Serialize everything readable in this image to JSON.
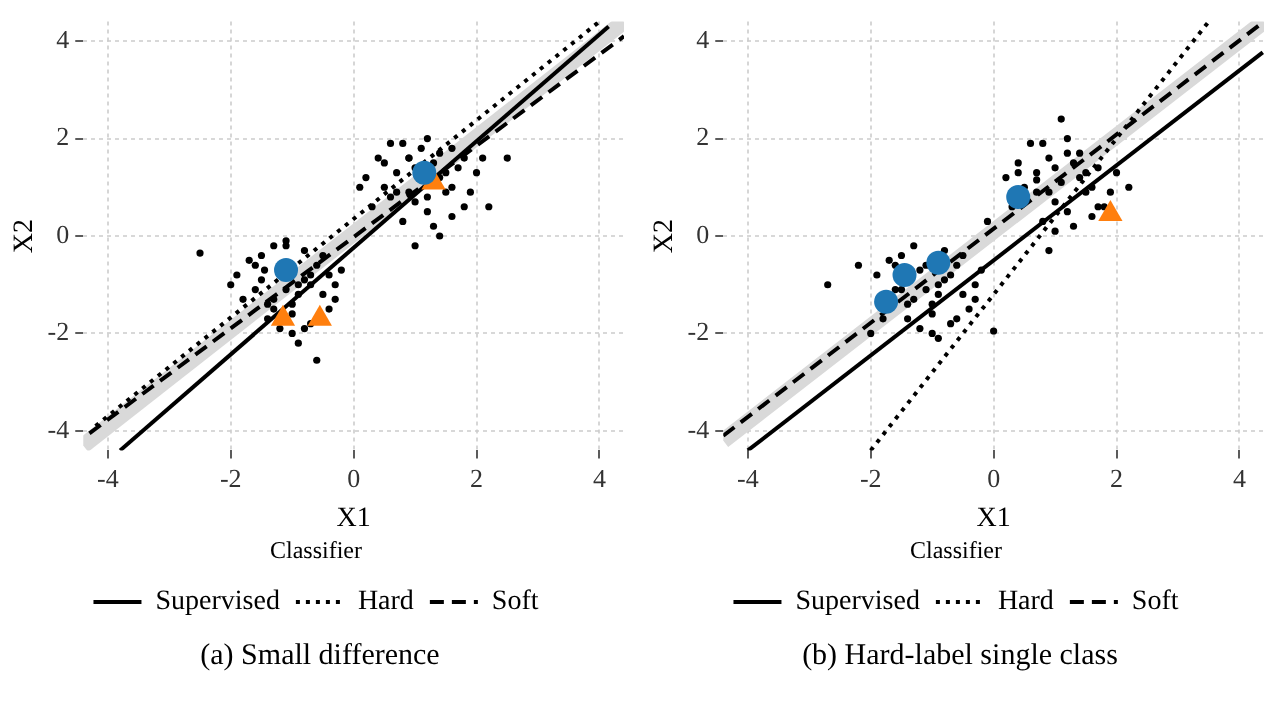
{
  "chart_data": [
    {
      "type": "scatter",
      "xlabel": "X1",
      "ylabel": "X2",
      "xlim": [
        -4.4,
        4.4
      ],
      "ylim": [
        -4.4,
        4.4
      ],
      "xticks": [
        -4,
        -2,
        0,
        2,
        4
      ],
      "yticks": [
        -4,
        -2,
        0,
        2,
        4
      ],
      "grid": true,
      "legend": "bottom",
      "legend_title": "Classifier",
      "annotations": [
        "(a) Small difference"
      ],
      "series": [
        {
          "type": "scatter",
          "marker": "circle",
          "color": "#000000",
          "x": [
            0.2,
            0.4,
            0.6,
            0.8,
            1.0,
            1.2,
            1.4,
            1.6,
            1.8,
            2.0,
            0.5,
            0.7,
            0.9,
            0.9,
            1.3,
            1.5,
            1.7,
            0.3,
            0.8,
            1.2,
            1.6,
            2.1,
            0.6,
            1.0,
            1.4,
            1.9,
            0.9,
            1.3,
            1.1,
            0.7,
            1.5,
            2.5,
            2.2,
            0.1,
            1.8,
            1.0,
            1.4,
            0.5,
            1.2,
            1.6,
            -0.9,
            -1.1,
            -1.3,
            -0.7,
            -0.5,
            -1.5,
            -1.7,
            -0.3,
            -1.0,
            -1.2,
            -0.8,
            -0.6,
            -1.4,
            -1.6,
            -1.9,
            -0.4,
            -1.0,
            -1.3,
            -0.9,
            -0.7,
            -1.1,
            -1.5,
            -0.2,
            -2.5,
            -0.6,
            -1.8,
            -0.8,
            -1.45,
            -1.0,
            -0.5,
            -1.4,
            -0.3,
            -1.6,
            -0.9,
            -1.1,
            -0.7,
            -2.0,
            -1.3,
            -0.4,
            -0.8
          ],
          "values": [
            1.2,
            1.6,
            0.8,
            1.9,
            1.4,
            0.5,
            1.7,
            1.0,
            0.6,
            1.3,
            1.0,
            1.3,
            0.9,
            1.6,
            1.5,
            0.9,
            1.4,
            0.6,
            0.3,
            2.0,
            0.4,
            1.6,
            1.9,
            0.7,
            1.2,
            0.9,
            1.6,
            0.2,
            1.8,
            0.9,
            1.3,
            1.6,
            0.6,
            1.0,
            1.6,
            -0.2,
            0.0,
            1.5,
            0.8,
            1.8,
            -1.0,
            -0.2,
            -1.3,
            -0.8,
            -1.2,
            -0.9,
            -0.5,
            -1.0,
            -1.6,
            -1.9,
            -0.3,
            -0.6,
            -1.4,
            -1.1,
            -0.8,
            -1.5,
            -2.0,
            -0.2,
            -1.2,
            -1.8,
            -1.1,
            -0.4,
            -0.7,
            -0.35,
            -2.55,
            -1.3,
            -0.9,
            -0.7,
            -1.4,
            -0.4,
            -1.7,
            -1.3,
            -0.6,
            -2.2,
            -0.1,
            -1.0,
            -1.0,
            -1.5,
            -0.8,
            -1.9
          ]
        },
        {
          "type": "scatter",
          "marker": "circle",
          "color": "#1f77b4",
          "x": [
            1.15,
            -1.1
          ],
          "values": [
            1.3,
            -0.7
          ]
        },
        {
          "type": "scatter",
          "marker": "triangle",
          "color": "#ff7f0e",
          "x": [
            1.3,
            -1.15,
            -0.55
          ],
          "values": [
            1.1,
            -1.7,
            -1.7
          ]
        },
        {
          "type": "line",
          "line_style": "solid",
          "color": "#d9d9d9",
          "x": [
            -4.4,
            4.4
          ],
          "values": [
            -4.3,
            4.4
          ]
        },
        {
          "type": "line",
          "name": "Supervised",
          "line_style": "solid",
          "color": "#000000",
          "x": [
            -3.8,
            4.15
          ],
          "values": [
            -4.4,
            4.3
          ]
        },
        {
          "type": "line",
          "name": "Hard",
          "line_style": "dotted",
          "color": "#000000",
          "x": [
            -4.2,
            4.0
          ],
          "values": [
            -3.9,
            4.4
          ]
        },
        {
          "type": "line",
          "name": "Soft",
          "line_style": "dashed",
          "color": "#000000",
          "x": [
            -4.3,
            4.4
          ],
          "values": [
            -4.05,
            4.1
          ]
        }
      ]
    },
    {
      "type": "scatter",
      "xlabel": "X1",
      "ylabel": "X2",
      "xlim": [
        -4.4,
        4.4
      ],
      "ylim": [
        -4.4,
        4.4
      ],
      "xticks": [
        -4,
        -2,
        0,
        2,
        4
      ],
      "yticks": [
        -4,
        -2,
        0,
        2,
        4
      ],
      "grid": true,
      "legend": "bottom",
      "legend_title": "Classifier",
      "annotations": [
        "(b) Hard-label single class"
      ],
      "series": [
        {
          "type": "scatter",
          "marker": "circle",
          "color": "#000000",
          "x": [
            0.2,
            0.4,
            0.7,
            0.8,
            1.0,
            1.2,
            1.4,
            1.6,
            1.8,
            2.0,
            0.5,
            0.7,
            0.9,
            1.1,
            1.3,
            1.5,
            1.7,
            0.3,
            0.8,
            1.2,
            1.6,
            2.2,
            0.6,
            1.0,
            1.4,
            1.9,
            0.9,
            1.3,
            1.1,
            0.7,
            1.5,
            -0.1,
            0.9,
            1.7,
            1.0,
            0.4,
            1.2,
            -0.9,
            -1.1,
            -1.3,
            -0.7,
            -0.5,
            -1.5,
            -1.7,
            -0.3,
            -1.0,
            -1.2,
            -0.8,
            -0.6,
            -1.4,
            -1.6,
            -1.9,
            -0.4,
            -1.0,
            -1.3,
            -0.9,
            -0.7,
            -1.1,
            -1.5,
            -0.2,
            -2.7,
            -2.0,
            0.0,
            -1.8,
            -0.8,
            -1.2,
            -1.0,
            -0.5,
            -1.4,
            -0.3,
            -1.6,
            -0.9,
            -0.6,
            -2.2
          ],
          "values": [
            1.2,
            1.5,
            1.15,
            1.9,
            1.4,
            0.5,
            1.7,
            1.0,
            0.6,
            1.3,
            1.0,
            1.3,
            0.9,
            1.1,
            1.5,
            0.9,
            1.4,
            0.6,
            0.3,
            2.0,
            0.4,
            1.0,
            1.9,
            0.7,
            1.2,
            0.9,
            1.6,
            0.2,
            2.4,
            0.9,
            1.3,
            0.3,
            -0.3,
            0.6,
            0.1,
            1.3,
            1.7,
            -1.0,
            -0.6,
            -1.3,
            -0.8,
            -1.2,
            -1.1,
            -0.5,
            -1.0,
            -1.6,
            -1.9,
            -0.3,
            -0.6,
            -1.4,
            -1.1,
            -0.8,
            -1.5,
            -2.0,
            -0.2,
            -1.2,
            -1.8,
            -1.1,
            -0.4,
            -0.7,
            -1.0,
            -2.0,
            -1.95,
            -1.7,
            -0.9,
            -0.7,
            -1.4,
            -0.4,
            -1.7,
            -1.3,
            -0.6,
            -2.1,
            -1.7,
            -0.6
          ]
        },
        {
          "type": "scatter",
          "marker": "circle",
          "color": "#1f77b4",
          "x": [
            0.4,
            -1.45,
            -0.9,
            -1.75
          ],
          "values": [
            0.8,
            -0.8,
            -0.55,
            -1.35
          ]
        },
        {
          "type": "scatter",
          "marker": "triangle",
          "color": "#ff7f0e",
          "x": [
            1.9
          ],
          "values": [
            0.45
          ]
        },
        {
          "type": "line",
          "line_style": "solid",
          "color": "#d9d9d9",
          "x": [
            -4.4,
            4.4
          ],
          "values": [
            -4.2,
            4.4
          ]
        },
        {
          "type": "line",
          "name": "Supervised",
          "line_style": "solid",
          "color": "#000000",
          "x": [
            -4.0,
            4.38
          ],
          "values": [
            -4.4,
            3.77
          ]
        },
        {
          "type": "line",
          "name": "Hard",
          "line_style": "dotted",
          "color": "#000000",
          "x": [
            -2.0,
            3.5
          ],
          "values": [
            -4.4,
            4.4
          ]
        },
        {
          "type": "line",
          "name": "Soft",
          "line_style": "dashed",
          "color": "#000000",
          "x": [
            -4.4,
            4.4
          ],
          "values": [
            -4.1,
            4.4
          ]
        }
      ]
    }
  ]
}
